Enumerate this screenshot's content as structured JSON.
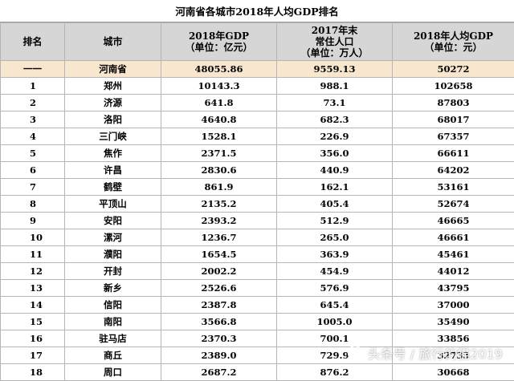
{
  "title": "河南省各城市2018年人均GDP排名",
  "headers": {
    "rank": "排名",
    "city": "城市",
    "gdp": [
      "2018年GDP",
      "（单位：亿元）"
    ],
    "population": [
      "2017年末",
      "常住人口",
      "（单位：万人）"
    ],
    "per_capita": [
      "2018年人均GDP",
      "（单位：元）"
    ]
  },
  "rows": [
    {
      "rank": "一一",
      "city": "河南省",
      "gdp": "48055.86",
      "population": "9559.13",
      "per_capita": "50272"
    },
    {
      "rank": "1",
      "city": "郑州",
      "gdp": "10143.3",
      "population": "988.1",
      "per_capita": "102658"
    },
    {
      "rank": "2",
      "city": "济源",
      "gdp": "641.8",
      "population": "73.1",
      "per_capita": "87803"
    },
    {
      "rank": "3",
      "city": "洛阳",
      "gdp": "4640.8",
      "population": "682.3",
      "per_capita": "68017"
    },
    {
      "rank": "4",
      "city": "三门峡",
      "gdp": "1528.1",
      "population": "226.9",
      "per_capita": "67357"
    },
    {
      "rank": "5",
      "city": "焦作",
      "gdp": "2371.5",
      "population": "356.0",
      "per_capita": "66611"
    },
    {
      "rank": "6",
      "city": "许昌",
      "gdp": "2830.6",
      "population": "440.9",
      "per_capita": "64202"
    },
    {
      "rank": "7",
      "city": "鹤壁",
      "gdp": "861.9",
      "population": "162.1",
      "per_capita": "53161"
    },
    {
      "rank": "8",
      "city": "平顶山",
      "gdp": "2135.2",
      "population": "405.4",
      "per_capita": "52674"
    },
    {
      "rank": "9",
      "city": "安阳",
      "gdp": "2393.2",
      "population": "512.9",
      "per_capita": "46665"
    },
    {
      "rank": "10",
      "city": "漯河",
      "gdp": "1236.7",
      "population": "265.0",
      "per_capita": "46661"
    },
    {
      "rank": "11",
      "city": "濮阳",
      "gdp": "1654.5",
      "population": "363.9",
      "per_capita": "45461"
    },
    {
      "rank": "12",
      "city": "开封",
      "gdp": "2002.2",
      "population": "454.9",
      "per_capita": "44012"
    },
    {
      "rank": "13",
      "city": "新乡",
      "gdp": "2526.6",
      "population": "576.9",
      "per_capita": "43795"
    },
    {
      "rank": "14",
      "city": "信阳",
      "gdp": "2387.8",
      "population": "645.4",
      "per_capita": "37000"
    },
    {
      "rank": "15",
      "city": "南阳",
      "gdp": "3566.8",
      "population": "1005.0",
      "per_capita": "35490"
    },
    {
      "rank": "16",
      "city": "驻马店",
      "gdp": "2370.3",
      "population": "700.1",
      "per_capita": "33856"
    },
    {
      "rank": "17",
      "city": "商丘",
      "gdp": "2389.0",
      "population": "729.9",
      "per_capita": "32733"
    },
    {
      "rank": "18",
      "city": "周口",
      "gdp": "2687.2",
      "population": "876.2",
      "per_capita": "30668"
    }
  ],
  "watermark": {
    "text": "头条号 / 旅行的猫2019",
    "icon": "toutiao-logo-icon"
  }
}
